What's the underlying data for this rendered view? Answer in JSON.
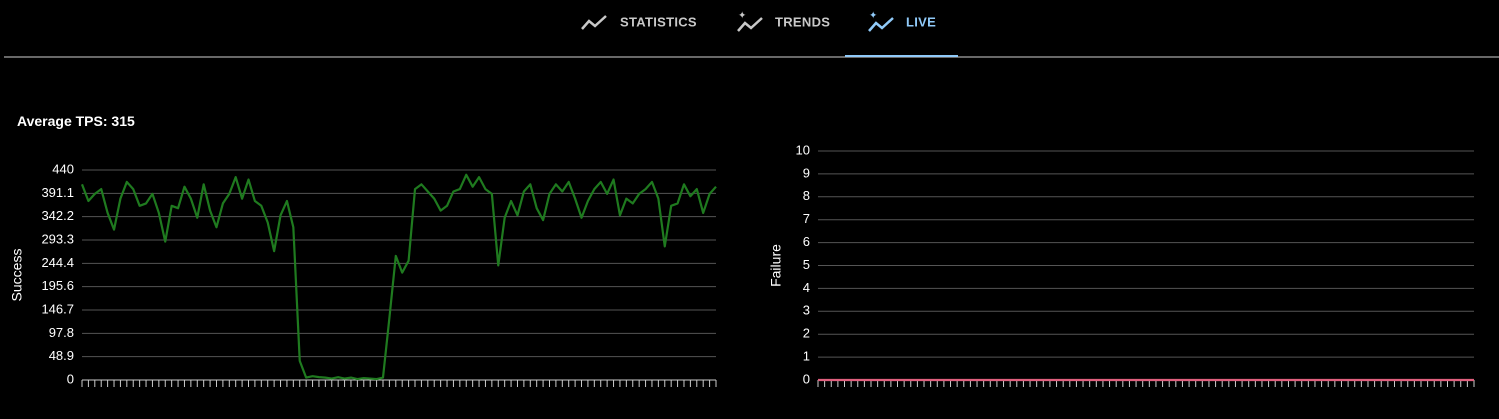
{
  "tabs": [
    "STATISTICS",
    "TRENDS",
    "LIVE"
  ],
  "active_tab": 2,
  "summary": {
    "label": "Average TPS:",
    "value": 315
  },
  "chart_data": [
    {
      "type": "line",
      "ylabel": "Success",
      "ylim": [
        0,
        440
      ],
      "yticks": [
        0,
        48.9,
        97.8,
        146.7,
        195.6,
        244.4,
        293.3,
        342.2,
        391.1,
        440
      ],
      "grid": true,
      "categories": [
        null,
        null,
        null,
        null,
        null,
        null,
        null,
        null,
        null,
        null,
        null,
        null,
        null,
        null,
        null,
        null,
        null,
        null,
        null,
        null,
        null,
        null,
        null,
        null,
        null,
        null,
        null,
        null,
        null,
        null,
        null,
        null,
        null,
        null,
        null,
        null,
        null,
        null,
        null,
        null,
        null,
        null,
        null,
        null,
        null,
        null,
        null,
        null,
        null,
        null,
        null,
        null,
        null,
        null,
        null,
        null,
        null,
        null,
        null,
        null,
        null,
        null,
        null,
        null,
        null,
        null,
        null,
        null,
        null,
        null,
        null,
        null,
        null,
        null,
        null,
        null,
        null,
        null,
        null,
        null,
        null,
        null,
        null,
        null,
        null,
        null,
        null,
        null,
        null,
        null,
        null,
        null,
        null,
        null,
        null,
        null,
        null,
        null,
        null,
        null
      ],
      "series": [
        {
          "name": "Success",
          "color": "#1f7a1f",
          "values": [
            410,
            375,
            390,
            400,
            350,
            315,
            380,
            415,
            400,
            365,
            370,
            390,
            350,
            290,
            365,
            360,
            405,
            380,
            340,
            410,
            355,
            320,
            370,
            390,
            425,
            380,
            420,
            375,
            365,
            330,
            270,
            345,
            375,
            320,
            40,
            5,
            8,
            6,
            5,
            3,
            6,
            3,
            5,
            2,
            4,
            3,
            2,
            5,
            130,
            260,
            225,
            250,
            400,
            410,
            395,
            380,
            355,
            365,
            395,
            400,
            430,
            405,
            425,
            400,
            390,
            240,
            340,
            375,
            345,
            395,
            410,
            360,
            335,
            390,
            410,
            395,
            415,
            380,
            340,
            375,
            400,
            415,
            390,
            420,
            345,
            380,
            370,
            390,
            400,
            415,
            380,
            280,
            365,
            370,
            410,
            385,
            400,
            350,
            390,
            405
          ]
        }
      ]
    },
    {
      "type": "line",
      "ylabel": "Failure",
      "ylim": [
        0,
        10
      ],
      "yticks": [
        0,
        1,
        2,
        3,
        4,
        5,
        6,
        7,
        8,
        9,
        10
      ],
      "grid": true,
      "categories": [
        null,
        null,
        null,
        null,
        null,
        null,
        null,
        null,
        null,
        null,
        null,
        null,
        null,
        null,
        null,
        null,
        null,
        null,
        null,
        null,
        null,
        null,
        null,
        null,
        null,
        null,
        null,
        null,
        null,
        null,
        null,
        null,
        null,
        null,
        null,
        null,
        null,
        null,
        null,
        null,
        null,
        null,
        null,
        null,
        null,
        null,
        null,
        null,
        null,
        null,
        null,
        null,
        null,
        null,
        null,
        null,
        null,
        null,
        null,
        null,
        null,
        null,
        null,
        null,
        null,
        null,
        null,
        null,
        null,
        null,
        null,
        null,
        null,
        null,
        null,
        null,
        null,
        null,
        null,
        null,
        null,
        null,
        null,
        null,
        null,
        null,
        null,
        null,
        null,
        null,
        null,
        null,
        null,
        null,
        null,
        null,
        null,
        null,
        null,
        null
      ],
      "series": [
        {
          "name": "Failure",
          "color": "#e0607e",
          "values": [
            0,
            0,
            0,
            0,
            0,
            0,
            0,
            0,
            0,
            0,
            0,
            0,
            0,
            0,
            0,
            0,
            0,
            0,
            0,
            0,
            0,
            0,
            0,
            0,
            0,
            0,
            0,
            0,
            0,
            0,
            0,
            0,
            0,
            0,
            0,
            0,
            0,
            0,
            0,
            0,
            0,
            0,
            0,
            0,
            0,
            0,
            0,
            0,
            0,
            0,
            0,
            0,
            0,
            0,
            0,
            0,
            0,
            0,
            0,
            0,
            0,
            0,
            0,
            0,
            0,
            0,
            0,
            0,
            0,
            0,
            0,
            0,
            0,
            0,
            0,
            0,
            0,
            0,
            0,
            0,
            0,
            0,
            0,
            0,
            0,
            0,
            0,
            0,
            0,
            0,
            0,
            0,
            0,
            0,
            0,
            0,
            0,
            0,
            0,
            0
          ]
        }
      ]
    }
  ]
}
